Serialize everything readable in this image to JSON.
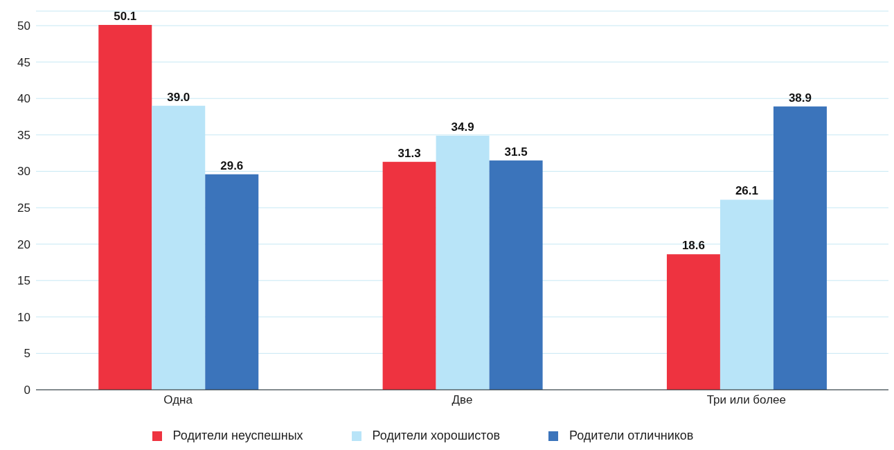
{
  "chart_data": {
    "type": "bar",
    "categories": [
      "Одна",
      "Две",
      "Три или более"
    ],
    "series": [
      {
        "name": "Родители неуспешных",
        "color": "#ee3340",
        "values": [
          50.1,
          31.3,
          18.6
        ]
      },
      {
        "name": "Родители хорошистов",
        "color": "#b8e4f8",
        "values": [
          39.0,
          34.9,
          26.1
        ]
      },
      {
        "name": "Родители отличников",
        "color": "#3b74bb",
        "values": [
          29.6,
          31.5,
          38.9
        ]
      }
    ],
    "value_labels": [
      [
        "50.1",
        "31.3",
        "18.6"
      ],
      [
        "39.0",
        "34.9",
        "26.1"
      ],
      [
        "29.6",
        "31.5",
        "38.9"
      ]
    ],
    "ylim": [
      0,
      52
    ],
    "yticks": [
      0,
      5,
      10,
      15,
      20,
      25,
      30,
      35,
      40,
      45,
      50
    ],
    "grid": "y",
    "legend": "bottom"
  }
}
